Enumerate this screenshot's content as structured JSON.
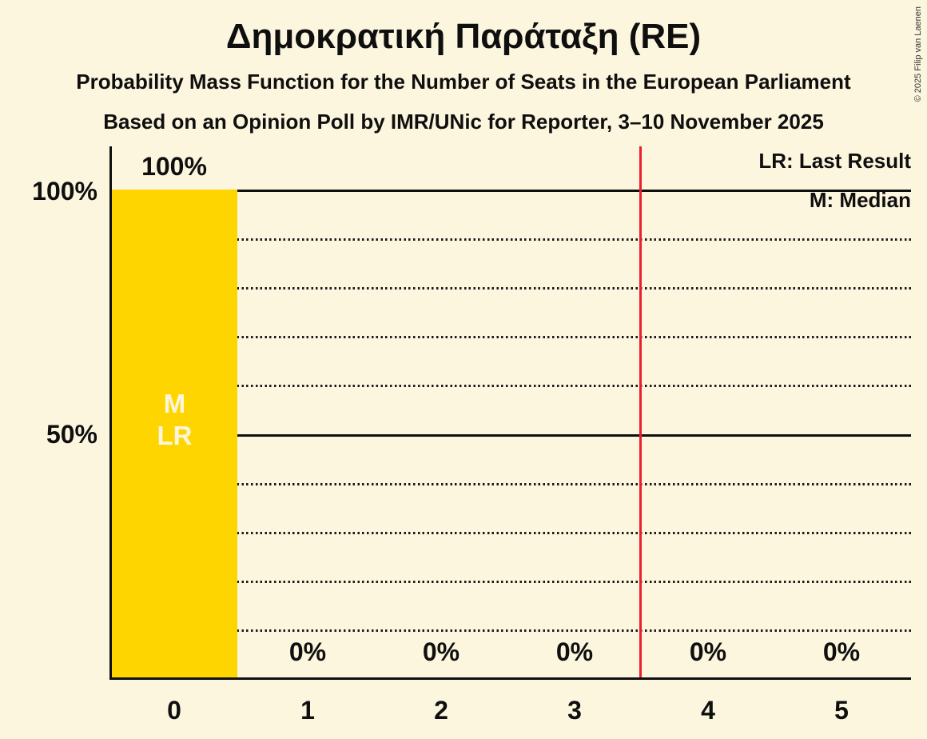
{
  "title": "Δημοκρατική Παράταξη (RE)",
  "subtitle1": "Probability Mass Function for the Number of Seats in the European Parliament",
  "subtitle2": "Based on an Opinion Poll by IMR/UNic for Reporter, 3–10 November 2025",
  "copyright": "© 2025 Filip van Laenen",
  "legend": {
    "last_result": "LR: Last Result",
    "median": "M: Median"
  },
  "y_axis": {
    "tick_100": "100%",
    "tick_50": "50%"
  },
  "bar_annotation": {
    "median": "M",
    "last_result": "LR"
  },
  "chart_data": {
    "type": "bar",
    "title": "Δημοκρατική Παράταξη (RE)",
    "subtitle": "Probability Mass Function for the Number of Seats in the European Parliament",
    "source_line": "Based on an Opinion Poll by IMR/UNic for Reporter, 3–10 November 2025",
    "categories": [
      "0",
      "1",
      "2",
      "3",
      "4",
      "5"
    ],
    "values": [
      100,
      0,
      0,
      0,
      0,
      0
    ],
    "value_labels": [
      "100%",
      "0%",
      "0%",
      "0%",
      "0%",
      "0%"
    ],
    "ylim": [
      0,
      100
    ],
    "y_tick_labels": [
      "100%",
      "50%"
    ],
    "solid_gridlines_pct": [
      100,
      50
    ],
    "dotted_gridlines_pct": [
      90,
      80,
      70,
      60,
      40,
      30,
      20,
      10
    ],
    "median_category": "0",
    "last_result_category": "0",
    "vertical_line_x": 3.5,
    "legend_entries": [
      "LR: Last Result",
      "M: Median"
    ],
    "legend_position": "top-right",
    "grid": "horizontal-only",
    "colors": {
      "background": "#fdf6de",
      "bar": "#ffd500",
      "bar_inner_text": "#fdf6de",
      "vertical_line": "#ed1c2f",
      "text": "#0f0f0f"
    }
  }
}
